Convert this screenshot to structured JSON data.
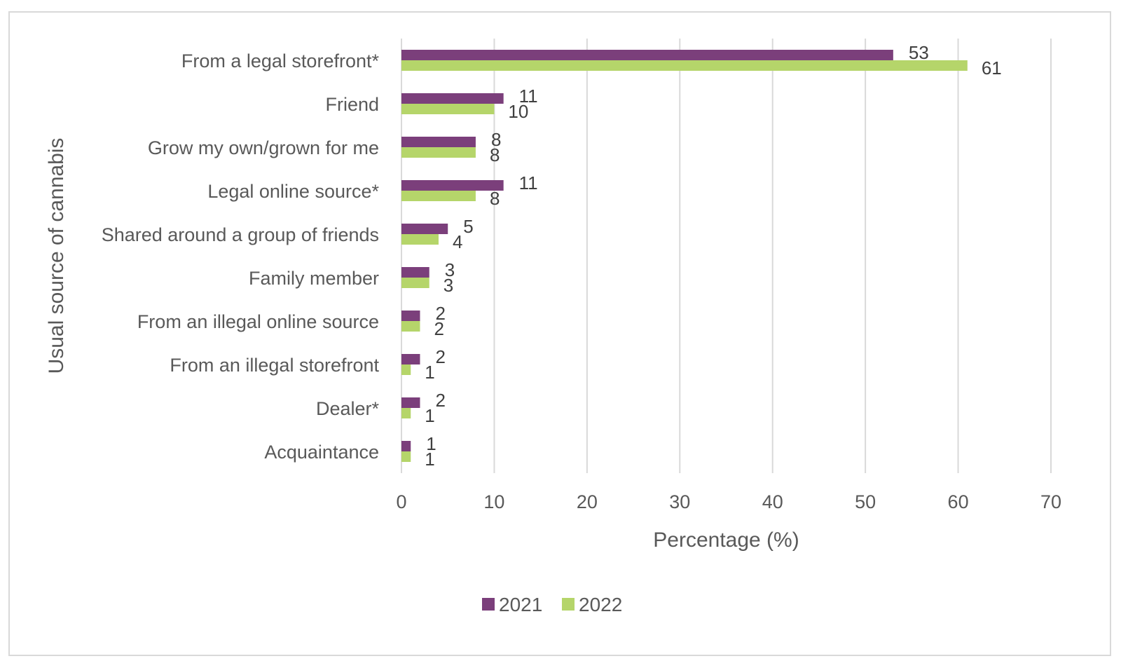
{
  "chart_data": {
    "type": "bar",
    "orientation": "horizontal",
    "categories": [
      "From a legal storefront*",
      "Friend",
      "Grow my own/grown for me",
      "Legal online source*",
      "Shared around a group of friends",
      "Family member",
      "From an illegal online source",
      "From an illegal storefront",
      "Dealer*",
      "Acquaintance"
    ],
    "series": [
      {
        "name": "2021",
        "color": "#7b3f7b",
        "values": [
          53,
          11,
          8,
          11,
          5,
          3,
          2,
          2,
          2,
          1
        ]
      },
      {
        "name": "2022",
        "color": "#b5d56a",
        "values": [
          61,
          10,
          8,
          8,
          4,
          3,
          2,
          1,
          1,
          1
        ]
      }
    ],
    "title": "",
    "xlabel": "Percentage (%)",
    "ylabel": "Usual source of cannabis",
    "xlim": [
      0,
      70
    ],
    "ticks": [
      "0",
      "10",
      "20",
      "30",
      "40",
      "50",
      "60",
      "70"
    ],
    "tick_values": [
      0,
      10,
      20,
      30,
      40,
      50,
      60,
      70
    ],
    "grid": "vertical",
    "legend_position": "bottom"
  }
}
